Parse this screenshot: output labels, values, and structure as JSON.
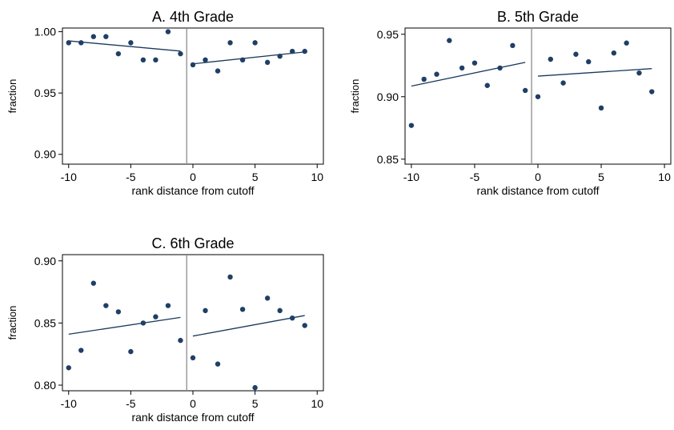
{
  "chart_data": [
    {
      "type": "scatter",
      "title": "A. 4th Grade",
      "xlabel": "rank distance from cutoff",
      "ylabel": "fraction",
      "xlim": [
        -10.5,
        10.5
      ],
      "ylim": [
        0.892,
        1.003
      ],
      "xticks": [
        -10,
        -5,
        0,
        5,
        10
      ],
      "xtick_labels": [
        "-10",
        "-5",
        "0",
        "5",
        "10"
      ],
      "yticks": [
        0.9,
        0.95,
        1.0
      ],
      "ytick_labels": [
        "0.90",
        "0.95",
        "1.00"
      ],
      "cutoff_x": -0.5,
      "points": [
        {
          "x": -10,
          "y": 0.991
        },
        {
          "x": -9,
          "y": 0.991
        },
        {
          "x": -8,
          "y": 0.996
        },
        {
          "x": -7,
          "y": 0.996
        },
        {
          "x": -6,
          "y": 0.982
        },
        {
          "x": -5,
          "y": 0.991
        },
        {
          "x": -4,
          "y": 0.977
        },
        {
          "x": -3,
          "y": 0.977
        },
        {
          "x": -2,
          "y": 1.0
        },
        {
          "x": -1,
          "y": 0.982
        },
        {
          "x": 0,
          "y": 0.973
        },
        {
          "x": 1,
          "y": 0.977
        },
        {
          "x": 2,
          "y": 0.968
        },
        {
          "x": 3,
          "y": 0.991
        },
        {
          "x": 4,
          "y": 0.977
        },
        {
          "x": 5,
          "y": 0.991
        },
        {
          "x": 6,
          "y": 0.975
        },
        {
          "x": 7,
          "y": 0.98
        },
        {
          "x": 8,
          "y": 0.984
        },
        {
          "x": 9,
          "y": 0.984
        }
      ],
      "fit_lines": [
        {
          "x": [
            -10,
            -1
          ],
          "y": [
            0.9925,
            0.9842
          ]
        },
        {
          "x": [
            0,
            9
          ],
          "y": [
            0.9738,
            0.9835
          ]
        }
      ]
    },
    {
      "type": "scatter",
      "title": "B. 5th Grade",
      "xlabel": "rank distance from cutoff",
      "ylabel": "fraction",
      "xlim": [
        -10.5,
        10.5
      ],
      "ylim": [
        0.846,
        0.955
      ],
      "xticks": [
        -10,
        -5,
        0,
        5,
        10
      ],
      "xtick_labels": [
        "-10",
        "-5",
        "0",
        "5",
        "10"
      ],
      "yticks": [
        0.85,
        0.9,
        0.95
      ],
      "ytick_labels": [
        "0.85",
        "0.90",
        "0.95"
      ],
      "cutoff_x": -0.5,
      "points": [
        {
          "x": -10,
          "y": 0.877
        },
        {
          "x": -9,
          "y": 0.914
        },
        {
          "x": -8,
          "y": 0.918
        },
        {
          "x": -7,
          "y": 0.945
        },
        {
          "x": -6,
          "y": 0.923
        },
        {
          "x": -5,
          "y": 0.927
        },
        {
          "x": -4,
          "y": 0.909
        },
        {
          "x": -3,
          "y": 0.923
        },
        {
          "x": -2,
          "y": 0.941
        },
        {
          "x": -1,
          "y": 0.905
        },
        {
          "x": 0,
          "y": 0.9
        },
        {
          "x": 1,
          "y": 0.93
        },
        {
          "x": 2,
          "y": 0.911
        },
        {
          "x": 3,
          "y": 0.934
        },
        {
          "x": 4,
          "y": 0.928
        },
        {
          "x": 5,
          "y": 0.891
        },
        {
          "x": 6,
          "y": 0.935
        },
        {
          "x": 7,
          "y": 0.943
        },
        {
          "x": 8,
          "y": 0.919
        },
        {
          "x": 9,
          "y": 0.904
        }
      ],
      "fit_lines": [
        {
          "x": [
            -10,
            -1
          ],
          "y": [
            0.9085,
            0.9275
          ]
        },
        {
          "x": [
            0,
            9
          ],
          "y": [
            0.9165,
            0.9225
          ]
        }
      ]
    },
    {
      "type": "scatter",
      "title": "C. 6th Grade",
      "xlabel": "rank distance from cutoff",
      "ylabel": "fraction",
      "xlim": [
        -10.5,
        10.5
      ],
      "ylim": [
        0.7955,
        0.905
      ],
      "xticks": [
        -10,
        -5,
        0,
        5,
        10
      ],
      "xtick_labels": [
        "-10",
        "-5",
        "0",
        "5",
        "10"
      ],
      "yticks": [
        0.8,
        0.85,
        0.9
      ],
      "ytick_labels": [
        "0.80",
        "0.85",
        "0.90"
      ],
      "cutoff_x": -0.5,
      "points": [
        {
          "x": -10,
          "y": 0.814
        },
        {
          "x": -9,
          "y": 0.828
        },
        {
          "x": -8,
          "y": 0.882
        },
        {
          "x": -7,
          "y": 0.864
        },
        {
          "x": -6,
          "y": 0.859
        },
        {
          "x": -5,
          "y": 0.827
        },
        {
          "x": -4,
          "y": 0.85
        },
        {
          "x": -3,
          "y": 0.855
        },
        {
          "x": -2,
          "y": 0.864
        },
        {
          "x": -1,
          "y": 0.836
        },
        {
          "x": 0,
          "y": 0.822
        },
        {
          "x": 1,
          "y": 0.86
        },
        {
          "x": 2,
          "y": 0.817
        },
        {
          "x": 3,
          "y": 0.887
        },
        {
          "x": 4,
          "y": 0.861
        },
        {
          "x": 5,
          "y": 0.798
        },
        {
          "x": 6,
          "y": 0.87
        },
        {
          "x": 7,
          "y": 0.86
        },
        {
          "x": 8,
          "y": 0.854
        },
        {
          "x": 9,
          "y": 0.848
        }
      ],
      "fit_lines": [
        {
          "x": [
            -10,
            -1
          ],
          "y": [
            0.841,
            0.8545
          ]
        },
        {
          "x": [
            0,
            9
          ],
          "y": [
            0.8395,
            0.856
          ]
        }
      ]
    }
  ],
  "colors": {
    "marker": "#1f3f66",
    "fit_line": "#1a3a5c",
    "cutoff_line": "#8c8c8c",
    "axis": "#000000",
    "text": "#000000"
  }
}
